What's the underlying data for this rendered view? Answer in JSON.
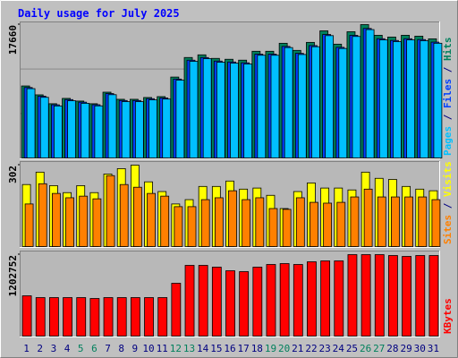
{
  "title": "Daily usage for July 2025",
  "separator": " / ",
  "categories": [
    "1",
    "2",
    "3",
    "4",
    "5",
    "6",
    "7",
    "8",
    "9",
    "10",
    "11",
    "12",
    "13",
    "14",
    "15",
    "16",
    "17",
    "18",
    "19",
    "20",
    "21",
    "22",
    "23",
    "24",
    "25",
    "26",
    "27",
    "28",
    "29",
    "30",
    "31"
  ],
  "x_label_colors": [
    "#000080",
    "#000080",
    "#000080",
    "#000080",
    "#00805c",
    "#00805c",
    "#000080",
    "#000080",
    "#000080",
    "#000080",
    "#000080",
    "#00805c",
    "#00805c",
    "#000080",
    "#000080",
    "#000080",
    "#000080",
    "#000080",
    "#00805c",
    "#00805c",
    "#000080",
    "#000080",
    "#000080",
    "#000080",
    "#000080",
    "#00805c",
    "#00805c",
    "#000080",
    "#000080",
    "#000080",
    "#000080"
  ],
  "chart_data": [
    {
      "type": "bar",
      "ylim": [
        0,
        17660
      ],
      "yticks": [
        17660
      ],
      "series": [
        {
          "name": "Hits",
          "color": "#00805c",
          "values": [
            9536,
            8359,
            7182,
            7888,
            7535,
            7182,
            8712,
            7770,
            7770,
            8006,
            8124,
            10714,
            13304,
            13657,
            13186,
            13069,
            12951,
            14128,
            14128,
            15188,
            14246,
            15306,
            16836,
            15070,
            16718,
            17660,
            16247,
            16012,
            16247,
            16130,
            15777
          ]
        },
        {
          "name": "Files",
          "color": "#0040ff",
          "values": [
            9330,
            8180,
            7040,
            7730,
            7390,
            7050,
            8530,
            7610,
            7610,
            7850,
            7950,
            10450,
            12950,
            13300,
            12830,
            12710,
            12600,
            13750,
            13750,
            14770,
            13850,
            14880,
            16350,
            14650,
            16240,
            17150,
            15790,
            15560,
            15790,
            15680,
            15340
          ]
        },
        {
          "name": "Pages",
          "color": "#00c0ff",
          "values": [
            9180,
            8030,
            6890,
            7580,
            7240,
            6900,
            8380,
            7460,
            7460,
            7700,
            7800,
            10300,
            12800,
            13150,
            12680,
            12560,
            12450,
            13600,
            13600,
            14620,
            13700,
            14730,
            16200,
            14500,
            16090,
            17000,
            15640,
            15410,
            15640,
            15530,
            15190
          ]
        }
      ]
    },
    {
      "type": "bar",
      "ylim": [
        0,
        302
      ],
      "yticks": [
        302
      ],
      "series": [
        {
          "name": "Visits",
          "color": "#ffff00",
          "values": [
            230,
            276,
            226,
            200,
            226,
            200,
            269,
            289,
            302,
            240,
            204,
            158,
            174,
            223,
            223,
            243,
            213,
            217,
            190,
            141,
            204,
            236,
            217,
            217,
            210,
            276,
            253,
            249,
            223,
            213,
            207
          ]
        },
        {
          "name": "Sites",
          "color": "#ff8000",
          "values": [
            158,
            233,
            197,
            181,
            187,
            177,
            263,
            230,
            220,
            197,
            187,
            148,
            148,
            174,
            181,
            207,
            174,
            181,
            141,
            138,
            181,
            164,
            161,
            164,
            184,
            213,
            184,
            184,
            184,
            184,
            174
          ]
        }
      ]
    },
    {
      "type": "bar",
      "ylim": [
        0,
        1202752
      ],
      "yticks": [
        1202752
      ],
      "series": [
        {
          "name": "KBytes",
          "color": "#ff0000",
          "values": [
            594764,
            568333,
            568333,
            568333,
            568333,
            555116,
            568333,
            568333,
            568333,
            568333,
            568333,
            779800,
            1044143,
            1044143,
            1017709,
            964841,
            951624,
            1017709,
            1057360,
            1070577,
            1057360,
            1097010,
            1110227,
            1110227,
            1202752,
            1202752,
            1202752,
            1189535,
            1176318,
            1189535,
            1189535
          ]
        }
      ]
    }
  ]
}
